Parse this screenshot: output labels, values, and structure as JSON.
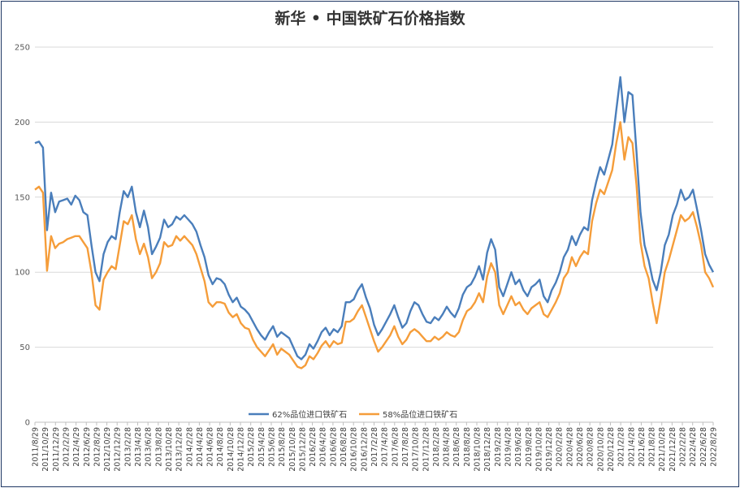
{
  "chart_data": {
    "type": "line",
    "title": "新华 • 中国铁矿石价格指数",
    "ylim": [
      0,
      250
    ],
    "yticks": [
      0,
      50,
      100,
      150,
      200,
      250
    ],
    "grid": true,
    "legend_position": "bottom",
    "x_tick_labels": [
      "2011/8/29",
      "2011/10/29",
      "2011/12/29",
      "2012/2/29",
      "2012/4/29",
      "2012/6/29",
      "2012/8/29",
      "2012/10/29",
      "2012/12/29",
      "2013/2/28",
      "2013/4/28",
      "2013/6/28",
      "2013/8/28",
      "2013/10/28",
      "2013/12/28",
      "2014/2/28",
      "2014/4/28",
      "2014/6/28",
      "2014/8/28",
      "2014/10/28",
      "2014/12/28",
      "2015/2/28",
      "2015/4/28",
      "2015/6/28",
      "2015/8/28",
      "2015/10/28",
      "2015/12/28",
      "2016/2/28",
      "2016/4/28",
      "2016/6/28",
      "2016/8/28",
      "2016/10/28",
      "2016/12/28",
      "2017/2/28",
      "2017/4/28",
      "2017/6/28",
      "2017/8/28",
      "2017/10/28",
      "2017/12/28",
      "2018/2/28",
      "2018/4/28",
      "2018/6/28",
      "2018/8/28",
      "2018/10/28",
      "2018/12/28",
      "2019/2/28",
      "2019/4/28",
      "2019/6/28",
      "2019/8/28",
      "2019/10/28",
      "2019/12/28",
      "2020/2/28",
      "2020/4/28",
      "2020/6/28",
      "2020/8/28",
      "2020/10/28",
      "2020/12/28",
      "2021/2/28",
      "2021/4/28",
      "2021/6/28",
      "2021/8/28",
      "2021/10/28",
      "2021/12/28",
      "2022/2/28",
      "2022/4/28",
      "2022/6/28",
      "2022/8/29"
    ],
    "series": [
      {
        "name": "62%品位进口铁矿石",
        "color": "#4a7ebb",
        "values": [
          186,
          187,
          183,
          128,
          153,
          140,
          147,
          148,
          149,
          145,
          151,
          148,
          140,
          138,
          118,
          100,
          94,
          112,
          120,
          124,
          122,
          140,
          154,
          150,
          157,
          140,
          130,
          141,
          130,
          112,
          117,
          123,
          135,
          130,
          132,
          137,
          135,
          138,
          135,
          132,
          127,
          118,
          110,
          98,
          92,
          96,
          95,
          92,
          85,
          80,
          83,
          77,
          75,
          72,
          67,
          62,
          58,
          55,
          60,
          64,
          57,
          60,
          58,
          56,
          50,
          44,
          42,
          45,
          52,
          49,
          54,
          60,
          63,
          58,
          62,
          60,
          64,
          80,
          80,
          82,
          88,
          92,
          83,
          76,
          65,
          58,
          62,
          67,
          72,
          78,
          70,
          63,
          66,
          74,
          80,
          78,
          72,
          67,
          66,
          70,
          68,
          72,
          77,
          73,
          70,
          76,
          85,
          90,
          92,
          97,
          104,
          95,
          113,
          122,
          115,
          90,
          84,
          92,
          100,
          92,
          95,
          88,
          84,
          90,
          92,
          95,
          84,
          80,
          88,
          93,
          100,
          110,
          115,
          124,
          118,
          125,
          130,
          128,
          148,
          160,
          170,
          165,
          175,
          185,
          208,
          230,
          200,
          220,
          218,
          180,
          140,
          118,
          108,
          95,
          88,
          100,
          118,
          125,
          138,
          145,
          155,
          148,
          150,
          155,
          142,
          128,
          112,
          105,
          100
        ]
      },
      {
        "name": "58%品位进口铁矿石",
        "color": "#f59d3a",
        "values": [
          155,
          157,
          153,
          101,
          124,
          116,
          119,
          120,
          122,
          123,
          124,
          124,
          120,
          116,
          100,
          78,
          75,
          95,
          100,
          104,
          102,
          118,
          134,
          132,
          138,
          122,
          112,
          119,
          110,
          96,
          100,
          106,
          120,
          117,
          118,
          124,
          121,
          124,
          121,
          118,
          112,
          103,
          94,
          80,
          77,
          80,
          80,
          79,
          73,
          70,
          72,
          66,
          63,
          62,
          55,
          50,
          47,
          44,
          48,
          52,
          45,
          49,
          47,
          45,
          41,
          37,
          36,
          38,
          44,
          42,
          46,
          51,
          54,
          50,
          54,
          52,
          53,
          67,
          67,
          69,
          74,
          78,
          70,
          62,
          54,
          47,
          50,
          54,
          58,
          64,
          57,
          52,
          55,
          60,
          62,
          60,
          57,
          54,
          54,
          57,
          55,
          57,
          60,
          58,
          57,
          60,
          68,
          74,
          76,
          80,
          86,
          80,
          97,
          106,
          100,
          78,
          72,
          78,
          84,
          78,
          80,
          75,
          72,
          76,
          78,
          80,
          72,
          70,
          75,
          80,
          86,
          96,
          100,
          110,
          104,
          110,
          114,
          112,
          134,
          146,
          155,
          152,
          160,
          168,
          186,
          200,
          175,
          190,
          186,
          158,
          120,
          104,
          96,
          80,
          66,
          82,
          100,
          108,
          118,
          128,
          138,
          134,
          136,
          140,
          130,
          118,
          100,
          96,
          90
        ]
      }
    ]
  }
}
